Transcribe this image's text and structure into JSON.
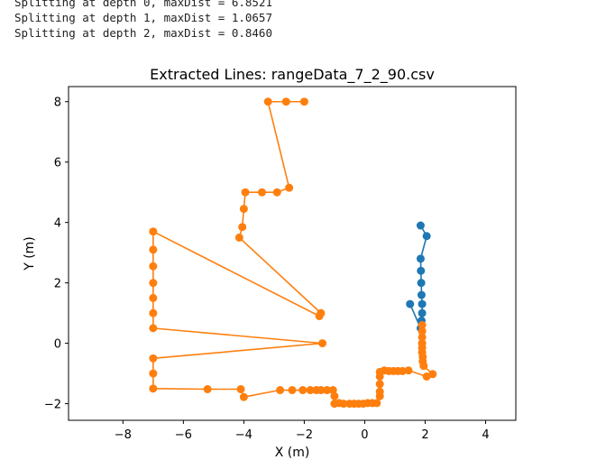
{
  "console": {
    "lines": [
      "Splitting at depth 0, maxDist = 6.8521",
      "Splitting at depth 1, maxDist = 1.0657",
      "Splitting at depth 2, maxDist = 0.8460"
    ]
  },
  "chart_data": {
    "type": "line",
    "title": "Extracted Lines: rangeData_7_2_90.csv",
    "xlabel": "X (m)",
    "ylabel": "Y (m)",
    "xlim": [
      -9.8,
      5.0
    ],
    "ylim": [
      -2.55,
      8.5
    ],
    "xticks": [
      -8,
      -6,
      -4,
      -2,
      0,
      2,
      4
    ],
    "yticks": [
      -2,
      0,
      2,
      4,
      6,
      8
    ],
    "xtick_labels": [
      "−8",
      "−6",
      "−4",
      "−2",
      "0",
      "2",
      "4"
    ],
    "ytick_labels": [
      "−2",
      "0",
      "2",
      "4",
      "6",
      "8"
    ],
    "grid": false,
    "series": [
      {
        "color": "#1f77b4",
        "marker": "circle",
        "points": [
          [
            1.5,
            1.3
          ],
          [
            1.85,
            0.5
          ],
          [
            1.88,
            0.75
          ],
          [
            1.9,
            1.0
          ],
          [
            1.9,
            1.3
          ],
          [
            1.88,
            1.6
          ],
          [
            1.87,
            2.0
          ],
          [
            1.86,
            2.4
          ],
          [
            1.85,
            2.8
          ],
          [
            2.05,
            3.55
          ],
          [
            1.85,
            3.9
          ]
        ]
      },
      {
        "color": "#ff7f0e",
        "marker": "circle",
        "points": [
          [
            -2.0,
            8.0
          ],
          [
            -2.6,
            8.0
          ],
          [
            -3.2,
            8.0
          ],
          [
            -2.5,
            5.15
          ],
          [
            -2.9,
            5.0
          ],
          [
            -3.4,
            5.0
          ],
          [
            -3.95,
            5.0
          ],
          [
            -4.0,
            4.45
          ],
          [
            -4.05,
            3.85
          ],
          [
            -4.15,
            3.5
          ],
          [
            -1.45,
            1.0
          ],
          [
            -1.5,
            0.9
          ],
          [
            -7.0,
            3.7
          ],
          [
            -7.0,
            3.1
          ],
          [
            -7.0,
            2.55
          ],
          [
            -7.0,
            2.0
          ],
          [
            -7.0,
            1.5
          ],
          [
            -7.0,
            1.0
          ],
          [
            -7.0,
            0.5
          ],
          [
            -1.4,
            0.0
          ],
          [
            -7.0,
            -0.5
          ],
          [
            -7.0,
            -1.0
          ],
          [
            -7.0,
            -1.5
          ],
          [
            -5.2,
            -1.52
          ],
          [
            -4.1,
            -1.52
          ],
          [
            -4.0,
            -1.78
          ],
          [
            -2.8,
            -1.55
          ],
          [
            -2.4,
            -1.55
          ],
          [
            -2.05,
            -1.55
          ],
          [
            -1.8,
            -1.55
          ],
          [
            -1.6,
            -1.55
          ],
          [
            -1.45,
            -1.55
          ],
          [
            -1.25,
            -1.55
          ],
          [
            -1.05,
            -1.55
          ],
          [
            -1.0,
            -1.75
          ],
          [
            -1.0,
            -2.0
          ],
          [
            -0.85,
            -1.98
          ],
          [
            -0.7,
            -2.0
          ],
          [
            -0.5,
            -2.0
          ],
          [
            -0.35,
            -2.0
          ],
          [
            -0.2,
            -2.0
          ],
          [
            -0.05,
            -2.0
          ],
          [
            0.1,
            -1.98
          ],
          [
            0.25,
            -1.98
          ],
          [
            0.4,
            -1.98
          ],
          [
            0.5,
            -1.75
          ],
          [
            0.5,
            -1.6
          ],
          [
            0.5,
            -1.35
          ],
          [
            0.5,
            -1.1
          ],
          [
            0.5,
            -0.95
          ],
          [
            0.65,
            -0.9
          ],
          [
            0.8,
            -0.92
          ],
          [
            0.95,
            -0.92
          ],
          [
            1.1,
            -0.92
          ],
          [
            1.25,
            -0.92
          ],
          [
            1.45,
            -0.9
          ],
          [
            2.05,
            -1.1
          ],
          [
            2.25,
            -1.02
          ],
          [
            1.95,
            -0.75
          ],
          [
            1.92,
            -0.6
          ],
          [
            1.92,
            -0.45
          ],
          [
            1.9,
            -0.3
          ],
          [
            1.9,
            -0.15
          ],
          [
            1.9,
            0.0
          ],
          [
            1.9,
            0.2
          ],
          [
            1.9,
            0.4
          ],
          [
            1.9,
            0.6
          ]
        ]
      }
    ]
  }
}
